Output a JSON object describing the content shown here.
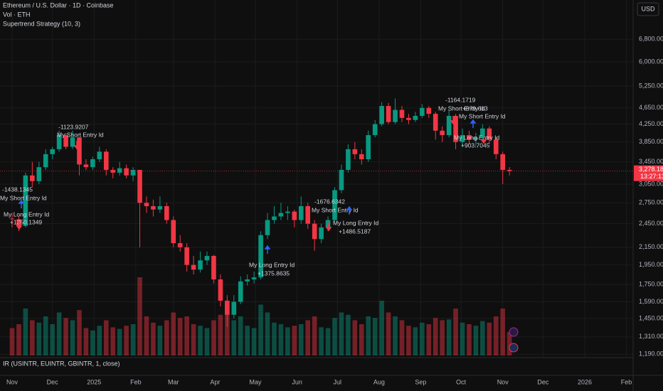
{
  "chart_data": {
    "type": "candlestick",
    "title": "Ethereum / U.S. Dollar · 1D · Coinbase",
    "indicators": [
      "Vol · ETH",
      "Supertrend Strategy (10, 3)"
    ],
    "lower_pane": "IR (USINTR, EUINTR, GBINTR, 1, close)",
    "currency": "USD",
    "log_scale": true,
    "grid": true,
    "up_color": "#089981",
    "down_color": "#f23645",
    "x": [
      0,
      5,
      10,
      15,
      20,
      25,
      30,
      35,
      40,
      45,
      50,
      55,
      60,
      65,
      70,
      75,
      80,
      85,
      90,
      95,
      100,
      105,
      110,
      115,
      120,
      125,
      130,
      135,
      140,
      145,
      150,
      155,
      160,
      165,
      170,
      175,
      180,
      185,
      190,
      195,
      200,
      205,
      210,
      215,
      220,
      225,
      230,
      235,
      240,
      245,
      250,
      255,
      260,
      265,
      270,
      275,
      280,
      285,
      290,
      295,
      300,
      305,
      310,
      315,
      320,
      325,
      330,
      335,
      340,
      345,
      350,
      355,
      360,
      365,
      370
    ],
    "open": [
      2520,
      2510,
      2420,
      3200,
      3100,
      3350,
      3600,
      3700,
      4000,
      3750,
      3950,
      3400,
      3350,
      3500,
      3650,
      3300,
      3250,
      3330,
      3200,
      3300,
      2750,
      2700,
      2650,
      2700,
      2500,
      2200,
      2150,
      1950,
      1900,
      2000,
      2050,
      1800,
      1600,
      1480,
      1590,
      1780,
      1800,
      1820,
      2300,
      2500,
      2550,
      2600,
      2620,
      2500,
      2700,
      2450,
      2250,
      2400,
      2500,
      2950,
      3300,
      3700,
      3600,
      3500,
      4000,
      4250,
      4700,
      4300,
      4600,
      4400,
      4350,
      4450,
      4650,
      4500,
      4100,
      4000,
      4450,
      3850,
      4000,
      3900,
      3950,
      4150,
      3900,
      3600,
      3300
    ],
    "high": [
      2600,
      2560,
      3250,
      3450,
      3450,
      3700,
      3750,
      4100,
      4050,
      4100,
      3950,
      3500,
      3550,
      3750,
      3700,
      3350,
      3450,
      3400,
      3350,
      3300,
      2850,
      2800,
      2850,
      2750,
      2550,
      2300,
      2200,
      2050,
      2100,
      2100,
      2060,
      1850,
      1650,
      1650,
      1830,
      1850,
      1880,
      2350,
      2600,
      2700,
      2750,
      2700,
      2650,
      2850,
      2750,
      2500,
      2450,
      2550,
      3000,
      3400,
      3800,
      3850,
      3700,
      4100,
      4350,
      4800,
      4780,
      4900,
      4700,
      4500,
      4550,
      4750,
      4700,
      4550,
      4200,
      4600,
      4500,
      4150,
      4100,
      4050,
      4250,
      4200,
      3950,
      3650,
      3350
    ],
    "low": [
      2400,
      2350,
      2400,
      3000,
      3050,
      3300,
      3500,
      3650,
      3700,
      3700,
      3200,
      3300,
      3300,
      3450,
      3200,
      3150,
      3200,
      3150,
      3100,
      2150,
      2600,
      2550,
      2600,
      2450,
      2150,
      2100,
      1880,
      1850,
      1870,
      1950,
      1760,
      1550,
      1385,
      1450,
      1570,
      1740,
      1760,
      1800,
      2250,
      2450,
      2500,
      2500,
      2400,
      2450,
      2380,
      2110,
      2200,
      2350,
      2480,
      2900,
      3250,
      3500,
      3400,
      3450,
      3950,
      4200,
      4250,
      4250,
      4300,
      4250,
      4300,
      4400,
      4400,
      3900,
      3850,
      3950,
      3700,
      3750,
      3800,
      3750,
      3850,
      3800,
      3500,
      3050,
      3200
    ],
    "close": [
      2510,
      2420,
      3200,
      3100,
      3350,
      3600,
      3700,
      4000,
      3750,
      3950,
      3400,
      3350,
      3500,
      3650,
      3300,
      3250,
      3330,
      3200,
      3300,
      2750,
      2700,
      2650,
      2700,
      2500,
      2200,
      2150,
      1950,
      1900,
      2000,
      2050,
      1800,
      1600,
      1480,
      1590,
      1780,
      1800,
      1820,
      2300,
      2500,
      2550,
      2600,
      2620,
      2500,
      2700,
      2450,
      2250,
      2400,
      2500,
      2950,
      3300,
      3700,
      3600,
      3500,
      4000,
      4250,
      4700,
      4300,
      4600,
      4400,
      4350,
      4450,
      4650,
      4500,
      4100,
      4000,
      4450,
      3850,
      4000,
      3900,
      3950,
      4150,
      3900,
      3600,
      3300,
      3278.18
    ],
    "volume": [
      35,
      40,
      60,
      45,
      42,
      50,
      40,
      55,
      48,
      45,
      58,
      35,
      32,
      38,
      45,
      36,
      34,
      38,
      40,
      100,
      50,
      42,
      38,
      45,
      55,
      48,
      50,
      40,
      38,
      35,
      45,
      52,
      70,
      45,
      50,
      38,
      35,
      65,
      55,
      42,
      40,
      36,
      38,
      40,
      45,
      50,
      36,
      35,
      48,
      55,
      52,
      45,
      40,
      50,
      48,
      70,
      55,
      50,
      45,
      38,
      36,
      42,
      40,
      48,
      45,
      46,
      60,
      42,
      40,
      38,
      44,
      42,
      50,
      60,
      30
    ],
    "volume_lim": [
      0,
      100
    ],
    "xlim": [
      -9,
      462
    ],
    "xticks": [
      {
        "value": 0,
        "label": "Nov"
      },
      {
        "value": 30,
        "label": "Dec"
      },
      {
        "value": 61,
        "label": "2025"
      },
      {
        "value": 92,
        "label": "Feb"
      },
      {
        "value": 120,
        "label": "Mar"
      },
      {
        "value": 151,
        "label": "Apr"
      },
      {
        "value": 181,
        "label": "May"
      },
      {
        "value": 212,
        "label": "Jun"
      },
      {
        "value": 242,
        "label": "Jul"
      },
      {
        "value": 273,
        "label": "Aug"
      },
      {
        "value": 304,
        "label": "Sep"
      },
      {
        "value": 334,
        "label": "Oct"
      },
      {
        "value": 365,
        "label": "Nov"
      },
      {
        "value": 395,
        "label": "Dec"
      },
      {
        "value": 426,
        "label": "2026"
      },
      {
        "value": 457,
        "label": "Feb"
      }
    ],
    "ylim": [
      1050,
      8450
    ],
    "yticks": [
      {
        "value": 1190,
        "label": "1,190.00"
      },
      {
        "value": 1310,
        "label": "1,310.00"
      },
      {
        "value": 1450,
        "label": "1,450.00"
      },
      {
        "value": 1590,
        "label": "1,590.00"
      },
      {
        "value": 1750,
        "label": "1,750.00"
      },
      {
        "value": 1950,
        "label": "1,950.00"
      },
      {
        "value": 2150,
        "label": "2,150.00"
      },
      {
        "value": 2450,
        "label": "2,450.00"
      },
      {
        "value": 2750,
        "label": "2,750.00"
      },
      {
        "value": 3050,
        "label": "3,050.00"
      },
      {
        "value": 3450,
        "label": "3,450.00"
      },
      {
        "value": 3850,
        "label": "3,850.00"
      },
      {
        "value": 4250,
        "label": "4,250.00"
      },
      {
        "value": 4650,
        "label": "4,650.00"
      },
      {
        "value": 5250,
        "label": "5,250.00"
      },
      {
        "value": 6000,
        "label": "6,000.00"
      },
      {
        "value": 6800,
        "label": "6,800.00"
      }
    ],
    "price_line": {
      "value": 3278.18,
      "label": "3,278.18"
    },
    "countdown": "13:27:13",
    "annotations": [
      "-1438.1345",
      "My Short Entry Id",
      "My Long Entry Id",
      "+1350.1349",
      "-1123.9207",
      "My Short Entry Id",
      "My Long Entry Id",
      "+1375.8635",
      "-1676.6342",
      "My Short Entry Id",
      "My Long Entry Id",
      "+1486.5187",
      "-1164.1719",
      "My Short Entry Id",
      "+879.613",
      "My Short Entry Id",
      "My Long Entry Id",
      "+903.7045"
    ]
  }
}
